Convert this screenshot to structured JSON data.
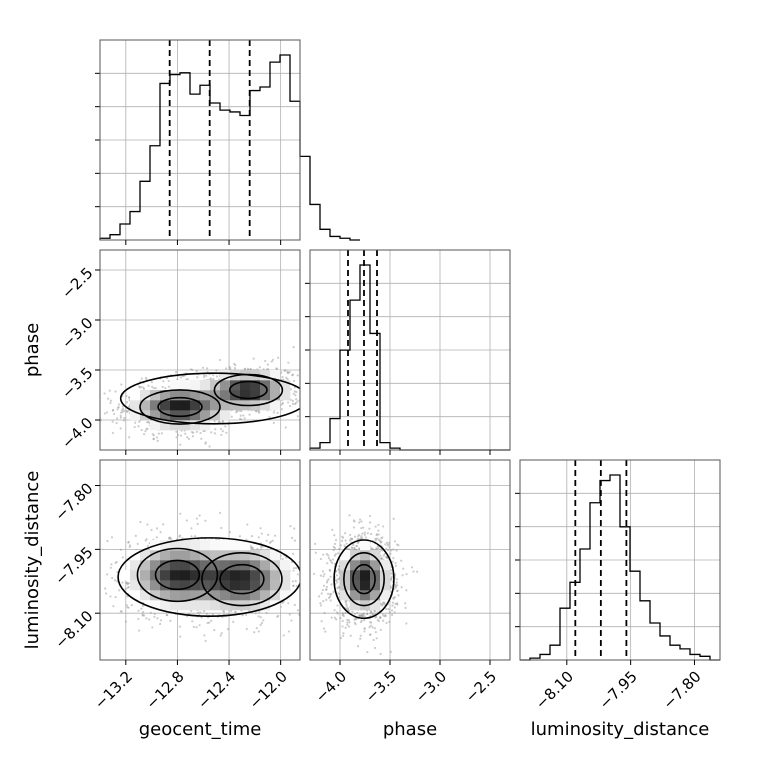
{
  "chart_data": {
    "type": "corner",
    "parameters": [
      {
        "name": "geocent_time",
        "range": [
          -13.4,
          -11.85
        ],
        "ticks": [
          -13.2,
          -12.8,
          -12.4,
          -12.0
        ],
        "tick_labels": [
          "−13.2",
          "−12.8",
          "−12.4",
          "−12.0"
        ],
        "quantiles": [
          -12.86,
          -12.55,
          -12.24
        ]
      },
      {
        "name": "phase",
        "range": [
          -4.3,
          -2.3
        ],
        "ticks": [
          -4.0,
          -3.5,
          -3.0,
          -2.5
        ],
        "tick_labels": [
          "−4.0",
          "−3.5",
          "−3.0",
          "−2.5"
        ],
        "quantiles": [
          -3.92,
          -3.76,
          -3.63
        ]
      },
      {
        "name": "luminosity_distance",
        "range": [
          -8.21,
          -7.74
        ],
        "ticks": [
          -8.1,
          -7.95,
          -7.8
        ],
        "tick_labels": [
          "−8.10",
          "−7.95",
          "−7.80"
        ],
        "quantiles": [
          -8.08,
          -8.02,
          -7.96
        ]
      }
    ],
    "histograms": [
      {
        "param": "geocent_time",
        "edges_start": -13.4,
        "bin_width": 0.0775,
        "counts": [
          1,
          3,
          9,
          16,
          33,
          53,
          88,
          93,
          94,
          82,
          87,
          77,
          73,
          72,
          70,
          84,
          86,
          100,
          104,
          78,
          47,
          20,
          6,
          2,
          1,
          0
        ]
      },
      {
        "param": "phase",
        "edges_start": -4.3,
        "bin_width": 0.1,
        "counts": [
          1,
          4,
          17,
          54,
          81,
          100,
          63,
          4,
          1,
          0,
          0,
          0,
          0,
          0,
          0,
          0,
          0,
          0,
          0,
          0
        ]
      },
      {
        "param": "luminosity_distance",
        "edges_start": -8.21,
        "bin_width": 0.0235,
        "counts": [
          0,
          1,
          3,
          8,
          28,
          42,
          60,
          85,
          97,
          100,
          72,
          48,
          32,
          20,
          13,
          8,
          6,
          3,
          2,
          0
        ]
      }
    ],
    "pairs": [
      {
        "x": "geocent_time",
        "y": "phase",
        "modes": [
          {
            "x": -12.78,
            "y": -3.87,
            "sx": 0.2,
            "sy": 0.11
          },
          {
            "x": -12.25,
            "y": -3.7,
            "sx": 0.17,
            "sy": 0.1
          }
        ]
      },
      {
        "x": "geocent_time",
        "y": "luminosity_distance",
        "modes": [
          {
            "x": -12.8,
            "y": -8.01,
            "sx": 0.2,
            "sy": 0.04
          },
          {
            "x": -12.3,
            "y": -8.02,
            "sx": 0.2,
            "sy": 0.04
          }
        ]
      },
      {
        "x": "phase",
        "y": "luminosity_distance",
        "modes": [
          {
            "x": -3.76,
            "y": -8.02,
            "sx": 0.13,
            "sy": 0.04
          }
        ]
      }
    ],
    "grid": true,
    "title": "",
    "xlabel": "",
    "ylabel": ""
  }
}
